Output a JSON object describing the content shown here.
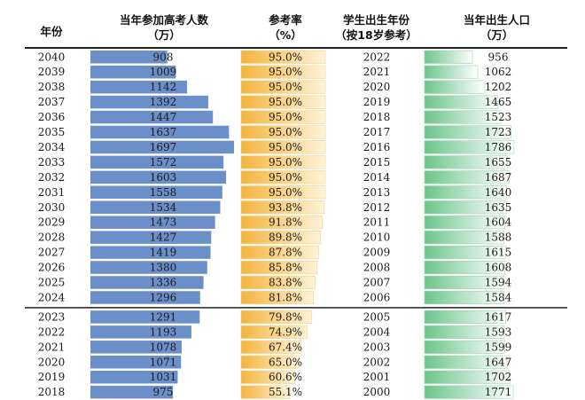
{
  "headers": {
    "year": "年份",
    "exam_title": "当年参加高考人数",
    "exam_unit": "（万）",
    "rate_title": "参考率",
    "rate_unit": "（%）",
    "birth_year_title": "学生出生年份",
    "birth_year_note": "（按18岁参考）",
    "births_title": "当年出生人口",
    "births_unit": "（万）"
  },
  "colors": {
    "exam_bar": "#6b8fc9",
    "rate_bar_start": "#f4b43e",
    "rate_bar_end": "#fff3d8",
    "birth_bar_start": "#6cc58a",
    "birth_bar_end": "#ffffff"
  },
  "chart_data": {
    "type": "bar",
    "rows": [
      {
        "year": "2040",
        "exam": 908,
        "exam_label": "908",
        "rate": 95.0,
        "rate_label": "95.0%",
        "birth_year": "2022",
        "births": 956,
        "births_label": "956"
      },
      {
        "year": "2039",
        "exam": 1009,
        "exam_label": "1009",
        "rate": 95.0,
        "rate_label": "95.0%",
        "birth_year": "2021",
        "births": 1062,
        "births_label": "1062"
      },
      {
        "year": "2038",
        "exam": 1142,
        "exam_label": "1142",
        "rate": 95.0,
        "rate_label": "95.0%",
        "birth_year": "2020",
        "births": 1202,
        "births_label": "1202"
      },
      {
        "year": "2037",
        "exam": 1392,
        "exam_label": "1392",
        "rate": 95.0,
        "rate_label": "95.0%",
        "birth_year": "2019",
        "births": 1465,
        "births_label": "1465"
      },
      {
        "year": "2036",
        "exam": 1447,
        "exam_label": "1447",
        "rate": 95.0,
        "rate_label": "95.0%",
        "birth_year": "2018",
        "births": 1523,
        "births_label": "1523"
      },
      {
        "year": "2035",
        "exam": 1637,
        "exam_label": "1637",
        "rate": 95.0,
        "rate_label": "95.0%",
        "birth_year": "2017",
        "births": 1723,
        "births_label": "1723"
      },
      {
        "year": "2034",
        "exam": 1697,
        "exam_label": "1697",
        "rate": 95.0,
        "rate_label": "95.0%",
        "birth_year": "2016",
        "births": 1786,
        "births_label": "1786"
      },
      {
        "year": "2033",
        "exam": 1572,
        "exam_label": "1572",
        "rate": 95.0,
        "rate_label": "95.0%",
        "birth_year": "2015",
        "births": 1655,
        "births_label": "1655"
      },
      {
        "year": "2032",
        "exam": 1603,
        "exam_label": "1603",
        "rate": 95.0,
        "rate_label": "95.0%",
        "birth_year": "2014",
        "births": 1687,
        "births_label": "1687"
      },
      {
        "year": "2031",
        "exam": 1558,
        "exam_label": "1558",
        "rate": 95.0,
        "rate_label": "95.0%",
        "birth_year": "2013",
        "births": 1640,
        "births_label": "1640"
      },
      {
        "year": "2030",
        "exam": 1534,
        "exam_label": "1534",
        "rate": 93.8,
        "rate_label": "93.8%",
        "birth_year": "2012",
        "births": 1635,
        "births_label": "1635"
      },
      {
        "year": "2029",
        "exam": 1473,
        "exam_label": "1473",
        "rate": 91.8,
        "rate_label": "91.8%",
        "birth_year": "2011",
        "births": 1604,
        "births_label": "1604"
      },
      {
        "year": "2028",
        "exam": 1427,
        "exam_label": "1427",
        "rate": 89.8,
        "rate_label": "89.8%",
        "birth_year": "2010",
        "births": 1588,
        "births_label": "1588"
      },
      {
        "year": "2027",
        "exam": 1419,
        "exam_label": "1419",
        "rate": 87.8,
        "rate_label": "87.8%",
        "birth_year": "2009",
        "births": 1615,
        "births_label": "1615"
      },
      {
        "year": "2026",
        "exam": 1380,
        "exam_label": "1380",
        "rate": 85.8,
        "rate_label": "85.8%",
        "birth_year": "2008",
        "births": 1608,
        "births_label": "1608"
      },
      {
        "year": "2025",
        "exam": 1336,
        "exam_label": "1336",
        "rate": 83.8,
        "rate_label": "83.8%",
        "birth_year": "2007",
        "births": 1594,
        "births_label": "1594"
      },
      {
        "year": "2024",
        "exam": 1296,
        "exam_label": "1296",
        "rate": 81.8,
        "rate_label": "81.8%",
        "birth_year": "2006",
        "births": 1584,
        "births_label": "1584"
      },
      {
        "year": "2023",
        "exam": 1291,
        "exam_label": "1291",
        "rate": 79.8,
        "rate_label": "79.8%",
        "birth_year": "2005",
        "births": 1617,
        "births_label": "1617"
      },
      {
        "year": "2022",
        "exam": 1193,
        "exam_label": "1193",
        "rate": 74.9,
        "rate_label": "74.9%",
        "birth_year": "2004",
        "births": 1593,
        "births_label": "1593"
      },
      {
        "year": "2021",
        "exam": 1078,
        "exam_label": "1078",
        "rate": 67.4,
        "rate_label": "67.4%",
        "birth_year": "2003",
        "births": 1599,
        "births_label": "1599"
      },
      {
        "year": "2020",
        "exam": 1071,
        "exam_label": "1071",
        "rate": 65.0,
        "rate_label": "65.0%",
        "birth_year": "2002",
        "births": 1647,
        "births_label": "1647"
      },
      {
        "year": "2019",
        "exam": 1031,
        "exam_label": "1031",
        "rate": 60.6,
        "rate_label": "60.6%",
        "birth_year": "2001",
        "births": 1702,
        "births_label": "1702"
      },
      {
        "year": "2018",
        "exam": 975,
        "exam_label": "975",
        "rate": 55.1,
        "rate_label": "55.1%",
        "birth_year": "2000",
        "births": 1771,
        "births_label": "1771"
      }
    ],
    "projection_break_after_year": "2024"
  }
}
